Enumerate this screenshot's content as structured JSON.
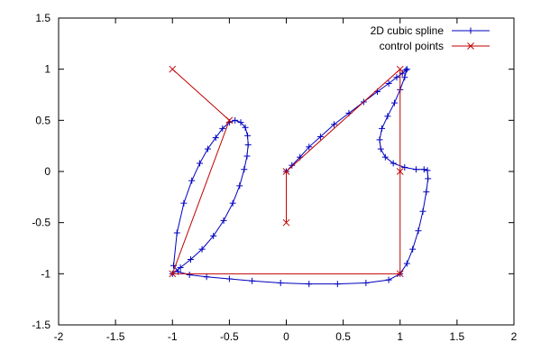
{
  "chart_data": {
    "type": "line",
    "xlim": [
      -2,
      2
    ],
    "ylim": [
      -1.5,
      1.5
    ],
    "x_ticks": [
      -2,
      -1.5,
      -1,
      -0.5,
      0,
      0.5,
      1,
      1.5,
      2
    ],
    "y_ticks": [
      -1.5,
      -1,
      -0.5,
      0,
      0.5,
      1,
      1.5
    ],
    "x_tick_labels": [
      "-2",
      "-1.5",
      "-1",
      "-0.5",
      "0",
      "0.5",
      "1",
      "1.5",
      "2"
    ],
    "y_tick_labels": [
      "-1.5",
      "-1",
      "-0.5",
      "0",
      "0.5",
      "1",
      "1.5"
    ],
    "grid": false,
    "legend_position": "top-right",
    "series": [
      {
        "name": "2D cubic spline",
        "color": "#0000c0",
        "marker": "plus",
        "x": [
          -1.0,
          -0.93,
          -0.84,
          -0.74,
          -0.64,
          -0.55,
          -0.47,
          -0.41,
          -0.37,
          -0.345,
          -0.335,
          -0.34,
          -0.36,
          -0.4,
          -0.45,
          -0.5,
          -0.56,
          -0.62,
          -0.69,
          -0.76,
          -0.83,
          -0.9,
          -0.96,
          -0.99,
          -0.95,
          -0.85,
          -0.7,
          -0.5,
          -0.3,
          -0.05,
          0.2,
          0.45,
          0.7,
          0.9,
          1.0,
          1.06,
          1.11,
          1.16,
          1.2,
          1.23,
          1.245,
          1.24,
          1.21,
          1.14,
          1.04,
          0.94,
          0.87,
          0.83,
          0.82,
          0.84,
          0.89,
          0.95,
          1.0,
          1.04,
          1.06,
          1.05,
          1.02,
          0.97,
          0.9,
          0.8,
          0.68,
          0.55,
          0.42,
          0.3,
          0.2,
          0.12,
          0.05,
          0.0
        ],
        "y": [
          -1.0,
          -0.94,
          -0.86,
          -0.76,
          -0.63,
          -0.48,
          -0.31,
          -0.14,
          0.02,
          0.15,
          0.26,
          0.35,
          0.43,
          0.48,
          0.5,
          0.48,
          0.42,
          0.33,
          0.22,
          0.08,
          -0.09,
          -0.31,
          -0.6,
          -0.92,
          -0.98,
          -1.01,
          -1.03,
          -1.05,
          -1.07,
          -1.09,
          -1.1,
          -1.1,
          -1.09,
          -1.06,
          -1.0,
          -0.9,
          -0.76,
          -0.58,
          -0.39,
          -0.2,
          -0.07,
          0.01,
          0.02,
          0.02,
          0.04,
          0.08,
          0.14,
          0.22,
          0.31,
          0.42,
          0.54,
          0.67,
          0.8,
          0.92,
          1.0,
          0.99,
          0.96,
          0.92,
          0.86,
          0.78,
          0.68,
          0.57,
          0.46,
          0.34,
          0.24,
          0.14,
          0.06,
          0.0
        ]
      },
      {
        "name": "control points",
        "color": "#c00000",
        "marker": "cross",
        "x": [
          -1,
          -0.5,
          -1,
          1,
          1,
          1,
          0,
          0
        ],
        "y": [
          1,
          0.5,
          -1,
          -1,
          0,
          1,
          0,
          -0.5
        ]
      }
    ]
  }
}
